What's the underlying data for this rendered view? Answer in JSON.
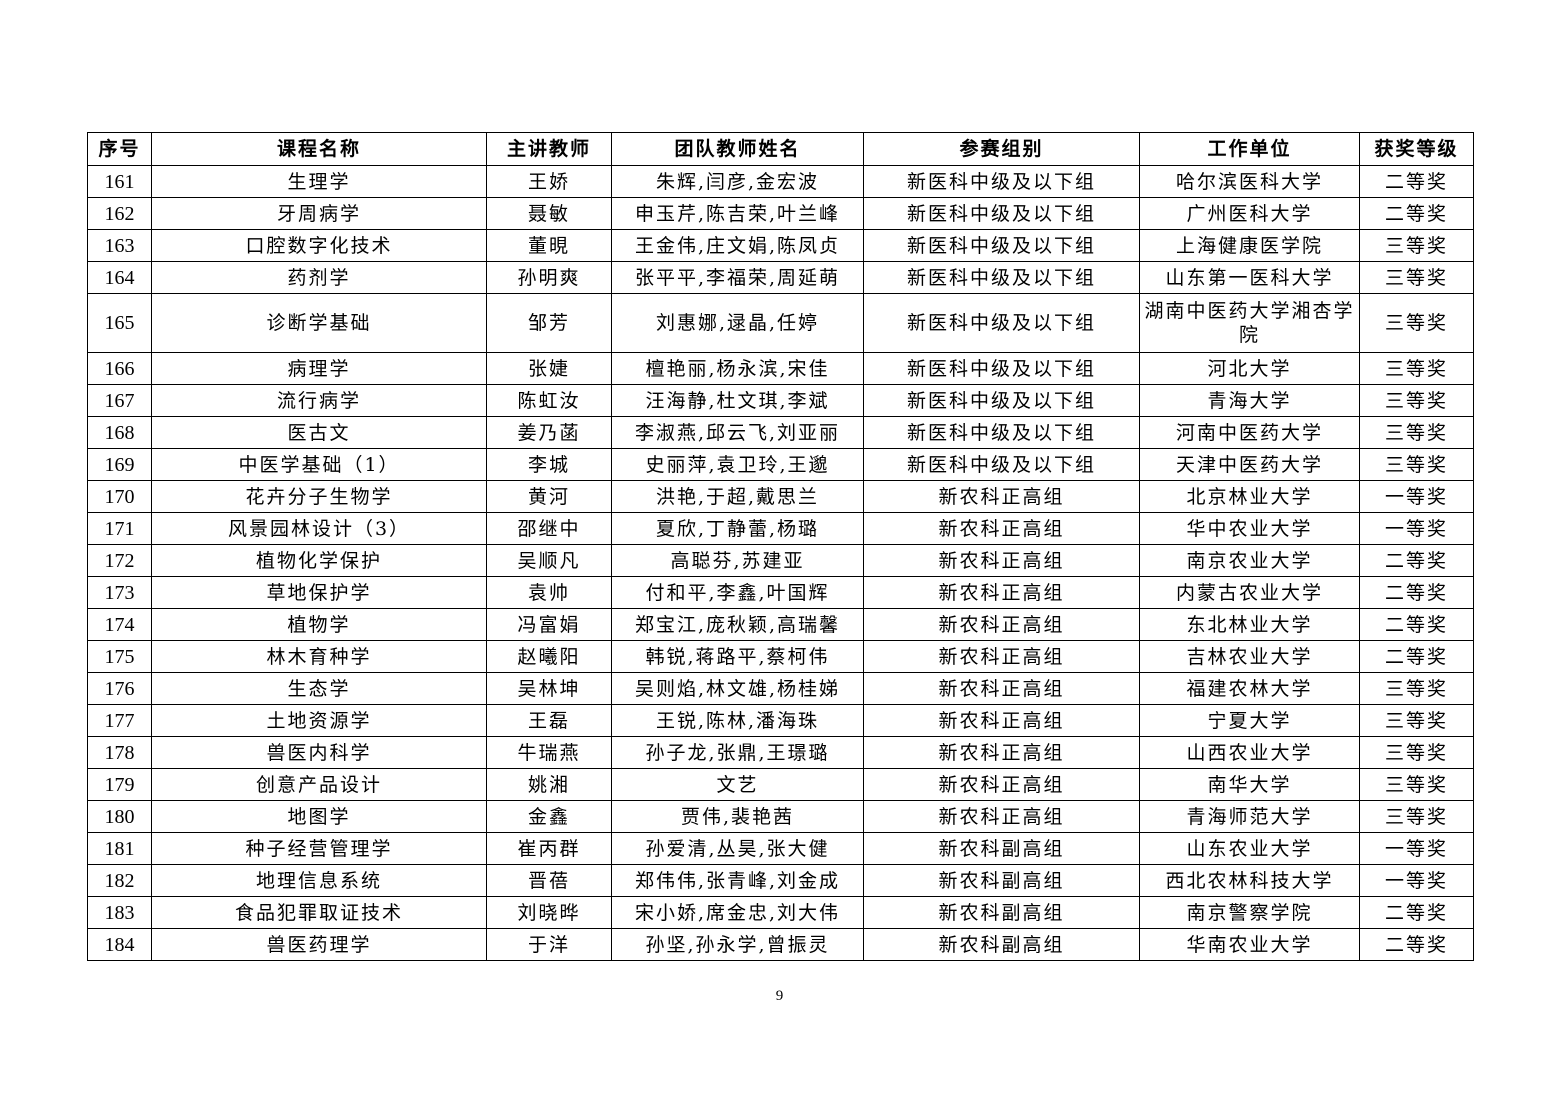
{
  "table": {
    "headers": [
      "序号",
      "课程名称",
      "主讲教师",
      "团队教师姓名",
      "参赛组别",
      "工作单位",
      "获奖等级"
    ],
    "rows": [
      [
        "161",
        "生理学",
        "王娇",
        "朱辉,闫彦,金宏波",
        "新医科中级及以下组",
        "哈尔滨医科大学",
        "二等奖"
      ],
      [
        "162",
        "牙周病学",
        "聂敏",
        "申玉芹,陈吉荣,叶兰峰",
        "新医科中级及以下组",
        "广州医科大学",
        "二等奖"
      ],
      [
        "163",
        "口腔数字化技术",
        "董晛",
        "王金伟,庄文娟,陈凤贞",
        "新医科中级及以下组",
        "上海健康医学院",
        "三等奖"
      ],
      [
        "164",
        "药剂学",
        "孙明爽",
        "张平平,李福荣,周延萌",
        "新医科中级及以下组",
        "山东第一医科大学",
        "三等奖"
      ],
      [
        "165",
        "诊断学基础",
        "邹芳",
        "刘惠娜,逯晶,任婷",
        "新医科中级及以下组",
        "湖南中医药大学湘杏学院",
        "三等奖"
      ],
      [
        "166",
        "病理学",
        "张婕",
        "檀艳丽,杨永滨,宋佳",
        "新医科中级及以下组",
        "河北大学",
        "三等奖"
      ],
      [
        "167",
        "流行病学",
        "陈虹汝",
        "汪海静,杜文琪,李斌",
        "新医科中级及以下组",
        "青海大学",
        "三等奖"
      ],
      [
        "168",
        "医古文",
        "姜乃菡",
        "李淑燕,邱云飞,刘亚丽",
        "新医科中级及以下组",
        "河南中医药大学",
        "三等奖"
      ],
      [
        "169",
        "中医学基础（1）",
        "李城",
        "史丽萍,袁卫玲,王邈",
        "新医科中级及以下组",
        "天津中医药大学",
        "三等奖"
      ],
      [
        "170",
        "花卉分子生物学",
        "黄河",
        "洪艳,于超,戴思兰",
        "新农科正高组",
        "北京林业大学",
        "一等奖"
      ],
      [
        "171",
        "风景园林设计（3）",
        "邵继中",
        "夏欣,丁静蕾,杨璐",
        "新农科正高组",
        "华中农业大学",
        "一等奖"
      ],
      [
        "172",
        "植物化学保护",
        "吴顺凡",
        "高聪芬,苏建亚",
        "新农科正高组",
        "南京农业大学",
        "二等奖"
      ],
      [
        "173",
        "草地保护学",
        "袁帅",
        "付和平,李鑫,叶国辉",
        "新农科正高组",
        "内蒙古农业大学",
        "二等奖"
      ],
      [
        "174",
        "植物学",
        "冯富娟",
        "郑宝江,庞秋颖,高瑞馨",
        "新农科正高组",
        "东北林业大学",
        "二等奖"
      ],
      [
        "175",
        "林木育种学",
        "赵曦阳",
        "韩锐,蒋路平,蔡柯伟",
        "新农科正高组",
        "吉林农业大学",
        "二等奖"
      ],
      [
        "176",
        "生态学",
        "吴林坤",
        "吴则焰,林文雄,杨桂娣",
        "新农科正高组",
        "福建农林大学",
        "三等奖"
      ],
      [
        "177",
        "土地资源学",
        "王磊",
        "王锐,陈林,潘海珠",
        "新农科正高组",
        "宁夏大学",
        "三等奖"
      ],
      [
        "178",
        "兽医内科学",
        "牛瑞燕",
        "孙子龙,张鼎,王璟璐",
        "新农科正高组",
        "山西农业大学",
        "三等奖"
      ],
      [
        "179",
        "创意产品设计",
        "姚湘",
        "文艺",
        "新农科正高组",
        "南华大学",
        "三等奖"
      ],
      [
        "180",
        "地图学",
        "金鑫",
        "贾伟,裴艳茜",
        "新农科正高组",
        "青海师范大学",
        "三等奖"
      ],
      [
        "181",
        "种子经营管理学",
        "崔丙群",
        "孙爱清,丛昊,张大健",
        "新农科副高组",
        "山东农业大学",
        "一等奖"
      ],
      [
        "182",
        "地理信息系统",
        "晋蓓",
        "郑伟伟,张青峰,刘金成",
        "新农科副高组",
        "西北农林科技大学",
        "一等奖"
      ],
      [
        "183",
        "食品犯罪取证技术",
        "刘晓晔",
        "宋小娇,席金忠,刘大伟",
        "新农科副高组",
        "南京警察学院",
        "二等奖"
      ],
      [
        "184",
        "兽医药理学",
        "于洋",
        "孙坚,孙永学,曾振灵",
        "新农科副高组",
        "华南农业大学",
        "二等奖"
      ]
    ]
  },
  "page_number": "9"
}
